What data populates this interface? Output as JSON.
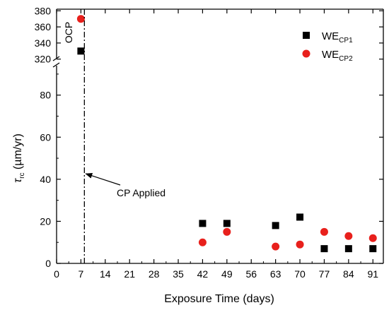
{
  "chart_data": {
    "type": "scatter",
    "xlabel": "Exposure Time (days)",
    "ylabel_symbol": "τ",
    "ylabel_sub": "rc",
    "ylabel_unit": " (µm/yr)",
    "xlim": [
      0,
      94
    ],
    "x_ticks": [
      0,
      7,
      14,
      21,
      28,
      35,
      42,
      49,
      56,
      63,
      70,
      77,
      84,
      91
    ],
    "lower_ylim": [
      0,
      95
    ],
    "lower_y_ticks": [
      0,
      20,
      40,
      60,
      80
    ],
    "upper_ylim": [
      318,
      382
    ],
    "upper_y_ticks": [
      320,
      340,
      360,
      380
    ],
    "broken_y_axis": true,
    "grid": false,
    "legend_position": "top-right",
    "series": [
      {
        "label_main": "WE",
        "label_sub": "CP1",
        "marker": "square",
        "color": "#000000",
        "points": [
          {
            "x": 7,
            "y": 330
          },
          {
            "x": 42,
            "y": 19
          },
          {
            "x": 49,
            "y": 19
          },
          {
            "x": 63,
            "y": 18
          },
          {
            "x": 70,
            "y": 22
          },
          {
            "x": 77,
            "y": 7
          },
          {
            "x": 84,
            "y": 7
          },
          {
            "x": 91,
            "y": 7
          }
        ]
      },
      {
        "label_main": "WE",
        "label_sub": "CP2",
        "marker": "circle",
        "color": "#e8201c",
        "points": [
          {
            "x": 7,
            "y": 370
          },
          {
            "x": 42,
            "y": 10
          },
          {
            "x": 49,
            "y": 15
          },
          {
            "x": 63,
            "y": 8
          },
          {
            "x": 70,
            "y": 9
          },
          {
            "x": 77,
            "y": 15
          },
          {
            "x": 84,
            "y": 13
          },
          {
            "x": 91,
            "y": 12
          }
        ]
      }
    ],
    "annotations": {
      "ocp_label": "OCP",
      "cp_label": "CP Applied",
      "cp_line_x": 8
    }
  }
}
